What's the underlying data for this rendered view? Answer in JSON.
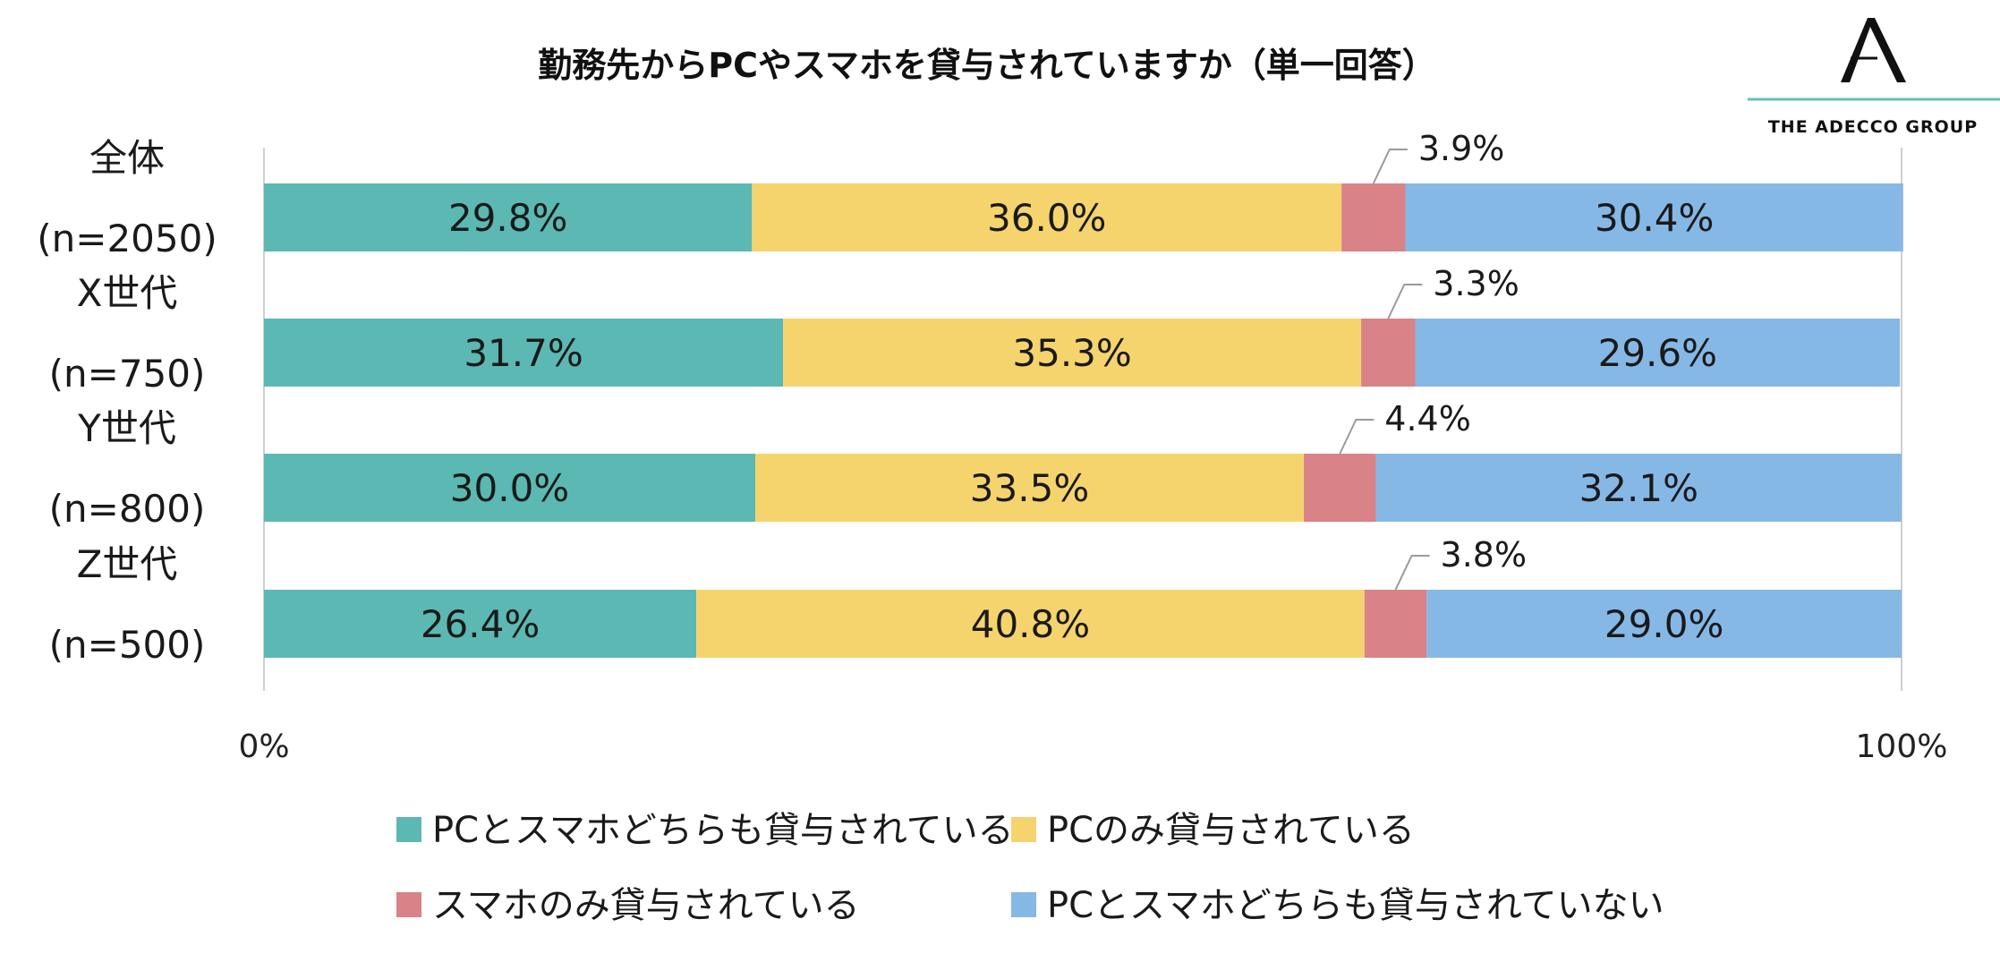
{
  "chart_data": {
    "type": "bar",
    "orientation": "horizontal",
    "stacked": "percent",
    "title": "勤務先からPCやスマホを貸与されていますか（単一回答）",
    "categories": [
      [
        "全体",
        "(n=2050)"
      ],
      [
        "X世代",
        "(n=750)"
      ],
      [
        "Y世代",
        "(n=800)"
      ],
      [
        "Z世代",
        "(n=500)"
      ]
    ],
    "series": [
      {
        "name": "PCとスマホどちらも貸与されている",
        "color": "#5cb8b2",
        "values": [
          29.8,
          31.7,
          30.0,
          26.4
        ]
      },
      {
        "name": "PCのみ貸与されている",
        "color": "#f5d46e",
        "values": [
          36.0,
          35.3,
          33.5,
          40.8
        ]
      },
      {
        "name": "スマホのみ貸与されている",
        "color": "#d98287",
        "values": [
          3.9,
          3.3,
          4.4,
          3.8
        ]
      },
      {
        "name": "PCとスマホどちらも貸与されていない",
        "color": "#86b8e6",
        "values": [
          30.4,
          29.6,
          32.1,
          29.0
        ]
      }
    ],
    "data_labels": [
      [
        "29.8%",
        "36.0%",
        "3.9%",
        "30.4%"
      ],
      [
        "31.7%",
        "35.3%",
        "3.3%",
        "29.6%"
      ],
      [
        "30.0%",
        "33.5%",
        "4.4%",
        "32.1%"
      ],
      [
        "26.4%",
        "40.8%",
        "3.8%",
        "29.0%"
      ]
    ],
    "xlim": [
      0,
      100
    ],
    "x_ticks": [
      "0%",
      "100%"
    ],
    "grid": false,
    "legend_position": "bottom"
  },
  "logo": {
    "text": "THE ADECCO GROUP",
    "accent": "#5cc2c0"
  }
}
